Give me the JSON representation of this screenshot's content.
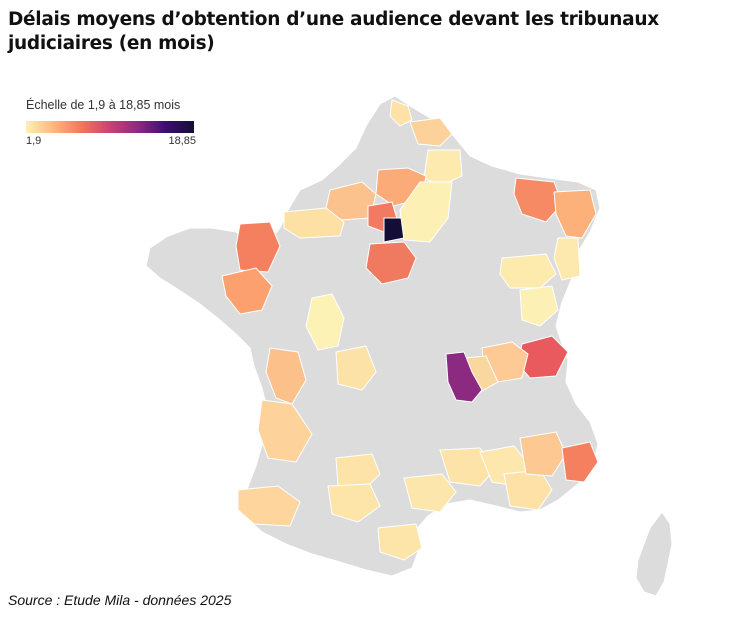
{
  "title": "Délais moyens d’obtention d’une audience devant les tribunaux judiciaires (en mois)",
  "legend": {
    "label": "Échelle de 1,9 à 18,85 mois",
    "min_label": "1,9",
    "max_label": "18,85",
    "min": 1.9,
    "max": 18.85,
    "colors": [
      "#fcf1b5",
      "#fcb67f",
      "#f4745f",
      "#cd4071",
      "#8c2981",
      "#3b0f70",
      "#140e36"
    ],
    "no_data_color": "#dcdcdc"
  },
  "source": "Source : Etude Mila - données 2025"
}
